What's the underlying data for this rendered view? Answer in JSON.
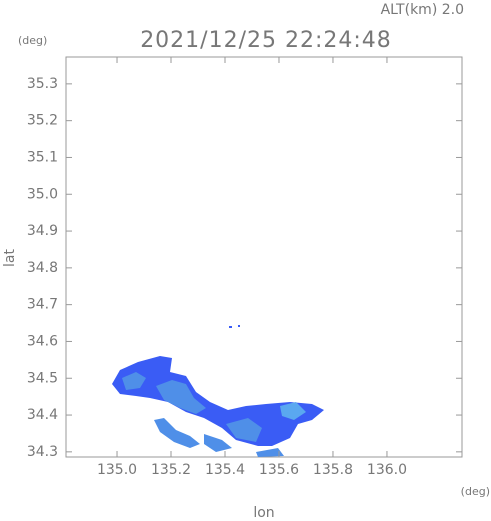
{
  "chart_data": {
    "type": "map",
    "title": "2021/12/25 22:24:48",
    "subtitle": "ALT(km) 2.0",
    "y_unit": "(deg)",
    "x_unit": "(deg)",
    "xlabel": "lon",
    "ylabel": "lat",
    "xlim": [
      134.811,
      136.278
    ],
    "ylim": [
      34.286,
      35.373
    ],
    "xticks": [
      {
        "value": 135,
        "label": "135.0"
      },
      135.2,
      135.4,
      135.6,
      135.8,
      {
        "value": 136,
        "label": "136.0"
      }
    ],
    "yticks": [
      35.3,
      35.2,
      35.1,
      {
        "value": 35,
        "label": "35.0"
      },
      34.9,
      34.8,
      34.7,
      34.6,
      34.5,
      34.4,
      34.3
    ]
  }
}
